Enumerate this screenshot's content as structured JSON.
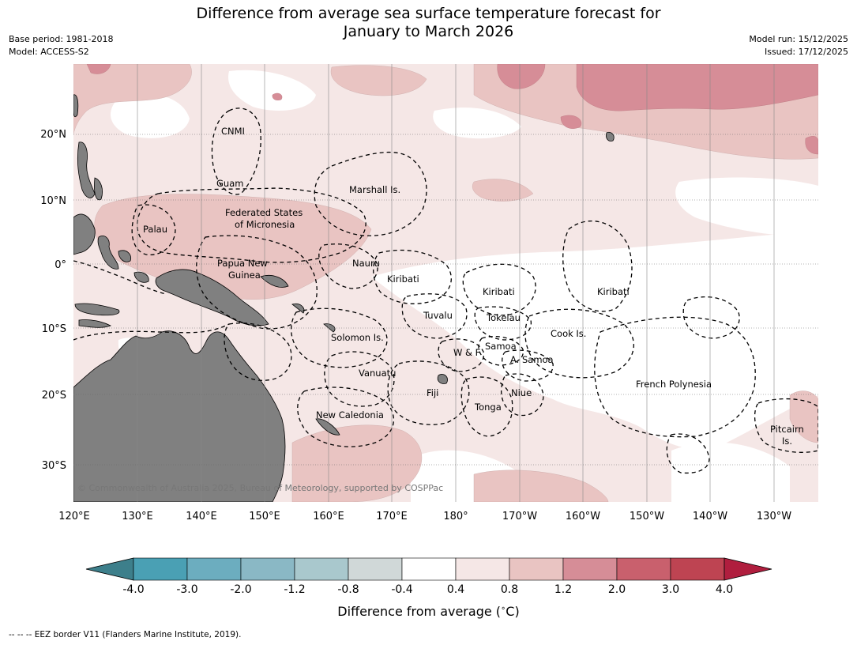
{
  "title": {
    "line1": "Difference from average sea surface temperature forecast for",
    "line2": "January to March 2026"
  },
  "meta": {
    "base_period": "Base period: 1981-2018",
    "model": "Model: ACCESS-S2",
    "model_run": "Model run: 15/12/2025",
    "issued": "Issued: 17/12/2025"
  },
  "map": {
    "lon_labels": [
      "120°E",
      "130°E",
      "140°E",
      "150°E",
      "160°E",
      "170°E",
      "180°",
      "170°W",
      "160°W",
      "150°W",
      "140°W",
      "130°W"
    ],
    "lat_labels": [
      "20°N",
      "10°N",
      "0°",
      "10°S",
      "20°S",
      "30°S"
    ],
    "copyright": "© Commonwealth of Australia 2025, Bureau of Meteorology, supported by COSPPac",
    "colors": {
      "land": "#808080",
      "neutral": "#ffffff",
      "warm_0_4": "#f5e7e6",
      "warm_0_8": "#e9c4c2",
      "warm_1_2": "#d68d97",
      "warm_2_0": "#c9606d",
      "warm_3_0": "#be4452",
      "warm_4_0": "#b01e3e"
    },
    "places": [
      {
        "id": "cnmi",
        "label": "CNMI"
      },
      {
        "id": "guam",
        "label": "Guam"
      },
      {
        "id": "marshall",
        "label": "Marshall Is."
      },
      {
        "id": "fsm1",
        "label": "Federated States"
      },
      {
        "id": "fsm2",
        "label": "of Micronesia"
      },
      {
        "id": "palau",
        "label": "Palau"
      },
      {
        "id": "png1",
        "label": "Papua New"
      },
      {
        "id": "png2",
        "label": "Guinea"
      },
      {
        "id": "nauru",
        "label": "Nauru"
      },
      {
        "id": "kiribati_w",
        "label": "Kiribati"
      },
      {
        "id": "kiribati_c",
        "label": "Kiribati"
      },
      {
        "id": "kiribati_e",
        "label": "Kiribati"
      },
      {
        "id": "tuvalu",
        "label": "Tuvalu"
      },
      {
        "id": "tokelau",
        "label": "Tokelau"
      },
      {
        "id": "cook",
        "label": "Cook Is."
      },
      {
        "id": "solomon",
        "label": "Solomon Is."
      },
      {
        "id": "wf",
        "label": "W & F"
      },
      {
        "id": "samoa",
        "label": "Samoa"
      },
      {
        "id": "asamoa",
        "label": "A. Samoa"
      },
      {
        "id": "vanuatu",
        "label": "Vanuatu"
      },
      {
        "id": "fiji",
        "label": "Fiji"
      },
      {
        "id": "niue",
        "label": "Niue"
      },
      {
        "id": "tonga",
        "label": "Tonga"
      },
      {
        "id": "frpoly",
        "label": "French Polynesia"
      },
      {
        "id": "newcal",
        "label": "New Caledonia"
      },
      {
        "id": "pitcairn1",
        "label": "Pitcairn"
      },
      {
        "id": "pitcairn2",
        "label": "Is."
      }
    ]
  },
  "colorbar": {
    "ticks": [
      "-4.0",
      "-3.0",
      "-2.0",
      "-1.2",
      "-0.8",
      "-0.4",
      "0.4",
      "0.8",
      "1.2",
      "2.0",
      "3.0",
      "4.0"
    ],
    "colors": [
      "#3d7f8b",
      "#4aa0b4",
      "#6cadbf",
      "#8ab8c5",
      "#a9c8cd",
      "#d0d8d8",
      "#ffffff",
      "#f5e7e6",
      "#e9c4c2",
      "#d68d97",
      "#c9606d",
      "#be4452",
      "#b01e3e"
    ],
    "title": "Difference from average ($^\\circ$C)"
  },
  "footnote": "--  --  -- EEZ border V11 (Flanders Marine Institute, 2019)."
}
